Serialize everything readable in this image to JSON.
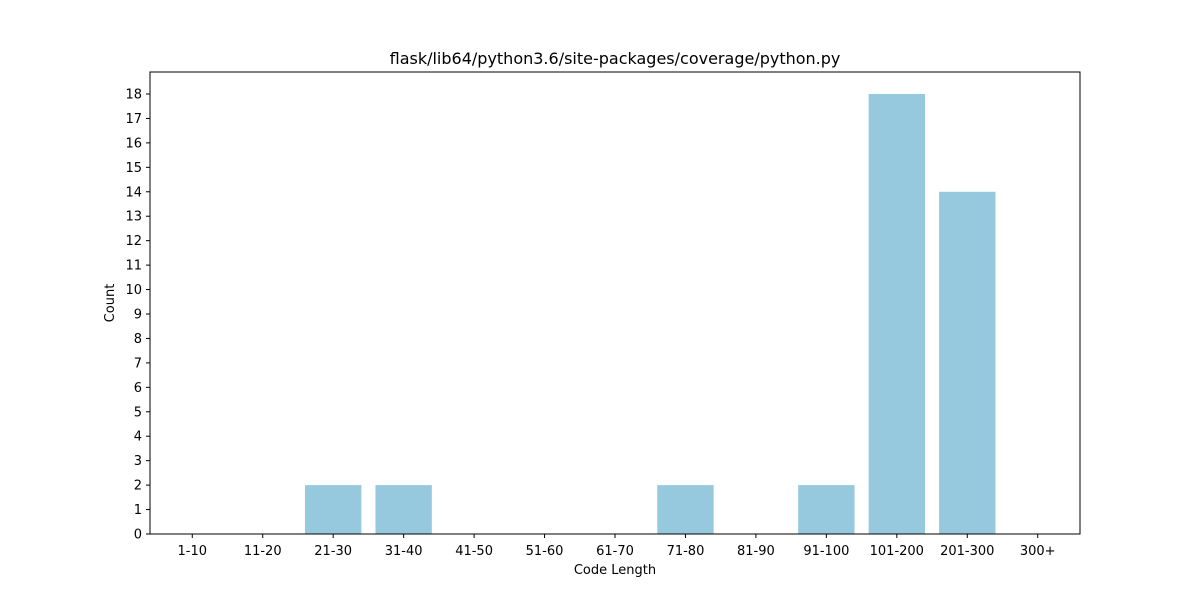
{
  "chart_data": {
    "type": "bar",
    "title": "flask/lib64/python3.6/site-packages/coverage/python.py",
    "xlabel": "Code Length",
    "ylabel": "Count",
    "categories": [
      "1-10",
      "11-20",
      "21-30",
      "31-40",
      "41-50",
      "51-60",
      "61-70",
      "71-80",
      "81-90",
      "91-100",
      "101-200",
      "201-300",
      "300+"
    ],
    "values": [
      0,
      0,
      2,
      2,
      0,
      0,
      0,
      2,
      0,
      2,
      18,
      14,
      0
    ],
    "ylim": [
      0,
      18.9
    ],
    "yticks": [
      0,
      1,
      2,
      3,
      4,
      5,
      6,
      7,
      8,
      9,
      10,
      11,
      12,
      13,
      14,
      15,
      16,
      17,
      18
    ],
    "grid": false,
    "bar_color": "#96c9dd"
  }
}
